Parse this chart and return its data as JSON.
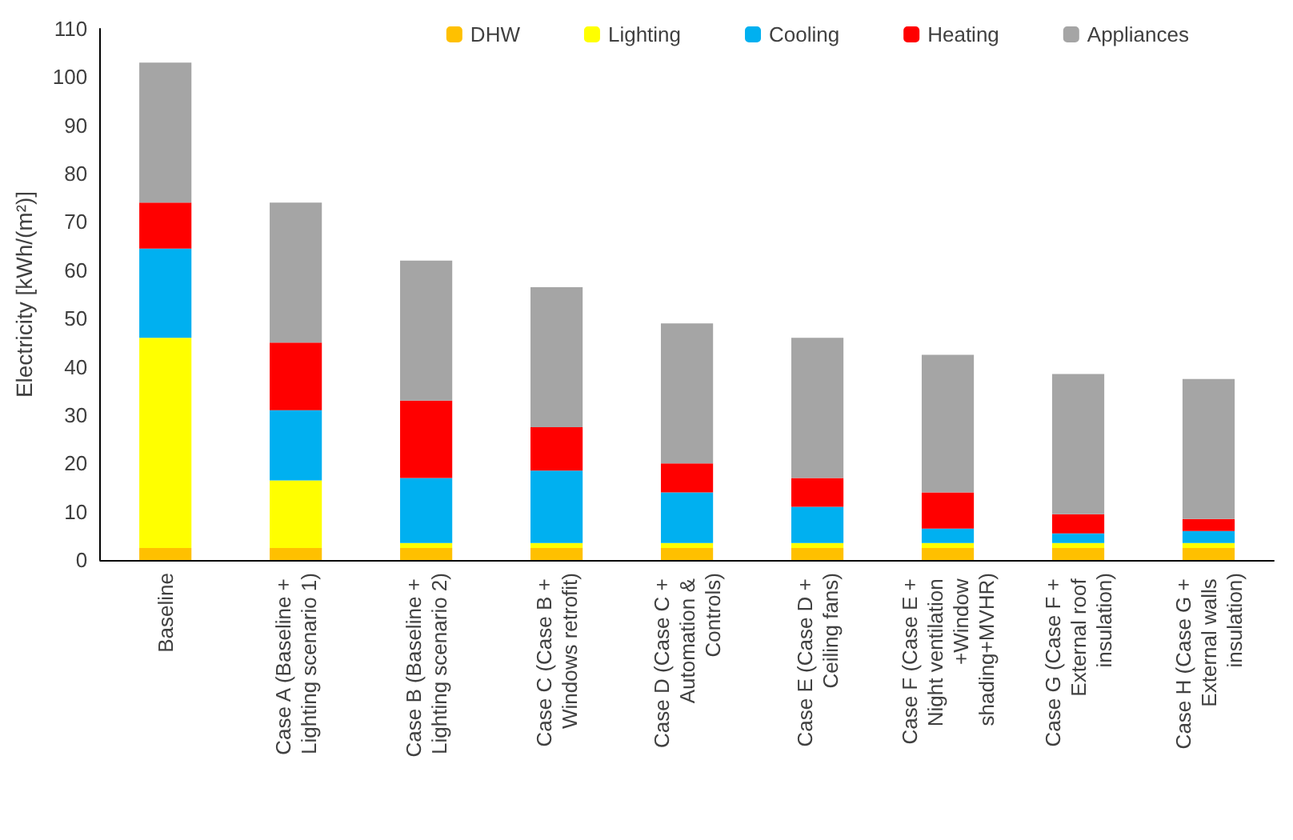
{
  "chart_data": {
    "type": "bar",
    "stacked": true,
    "ylabel": "Electricity [kWh/(m²)]",
    "categories": [
      "Baseline",
      "Case A (Baseline + Lighting scenario 1)",
      "Case B (Baseline + Lighting scenario 2)",
      "Case C (Case B + Windows retrofit)",
      "Case D (Case C + Automation & Controls)",
      "Case E (Case D + Ceiling fans)",
      "Case F (Case E + Night ventilation +Window shading+MVHR)",
      "Case G (Case F + External roof insulation)",
      "Case H (Case G + External walls insulation)"
    ],
    "series": [
      {
        "name": "DHW",
        "color": "#ffc000",
        "values": [
          2.5,
          2.5,
          2.5,
          2.5,
          2.5,
          2.5,
          2.5,
          2.5,
          2.5
        ]
      },
      {
        "name": "Lighting",
        "color": "#ffff00",
        "values": [
          43.5,
          14,
          1,
          1,
          1,
          1,
          1,
          1,
          1
        ]
      },
      {
        "name": "Cooling",
        "color": "#00b0f0",
        "values": [
          18.5,
          14.5,
          13.5,
          15,
          10.5,
          7.5,
          3,
          2,
          2.5
        ]
      },
      {
        "name": "Heating",
        "color": "#ff0000",
        "values": [
          9.5,
          14,
          16,
          9,
          6,
          6,
          7.5,
          4,
          2.5
        ]
      },
      {
        "name": "Appliances",
        "color": "#a5a5a5",
        "values": [
          29,
          29,
          29,
          29,
          29,
          29,
          28.5,
          29,
          29
        ]
      }
    ],
    "ylim": [
      0,
      110
    ],
    "yticks": [
      0,
      10,
      20,
      30,
      40,
      50,
      60,
      70,
      80,
      90,
      100,
      110
    ],
    "grid": false,
    "legend": "top right"
  }
}
